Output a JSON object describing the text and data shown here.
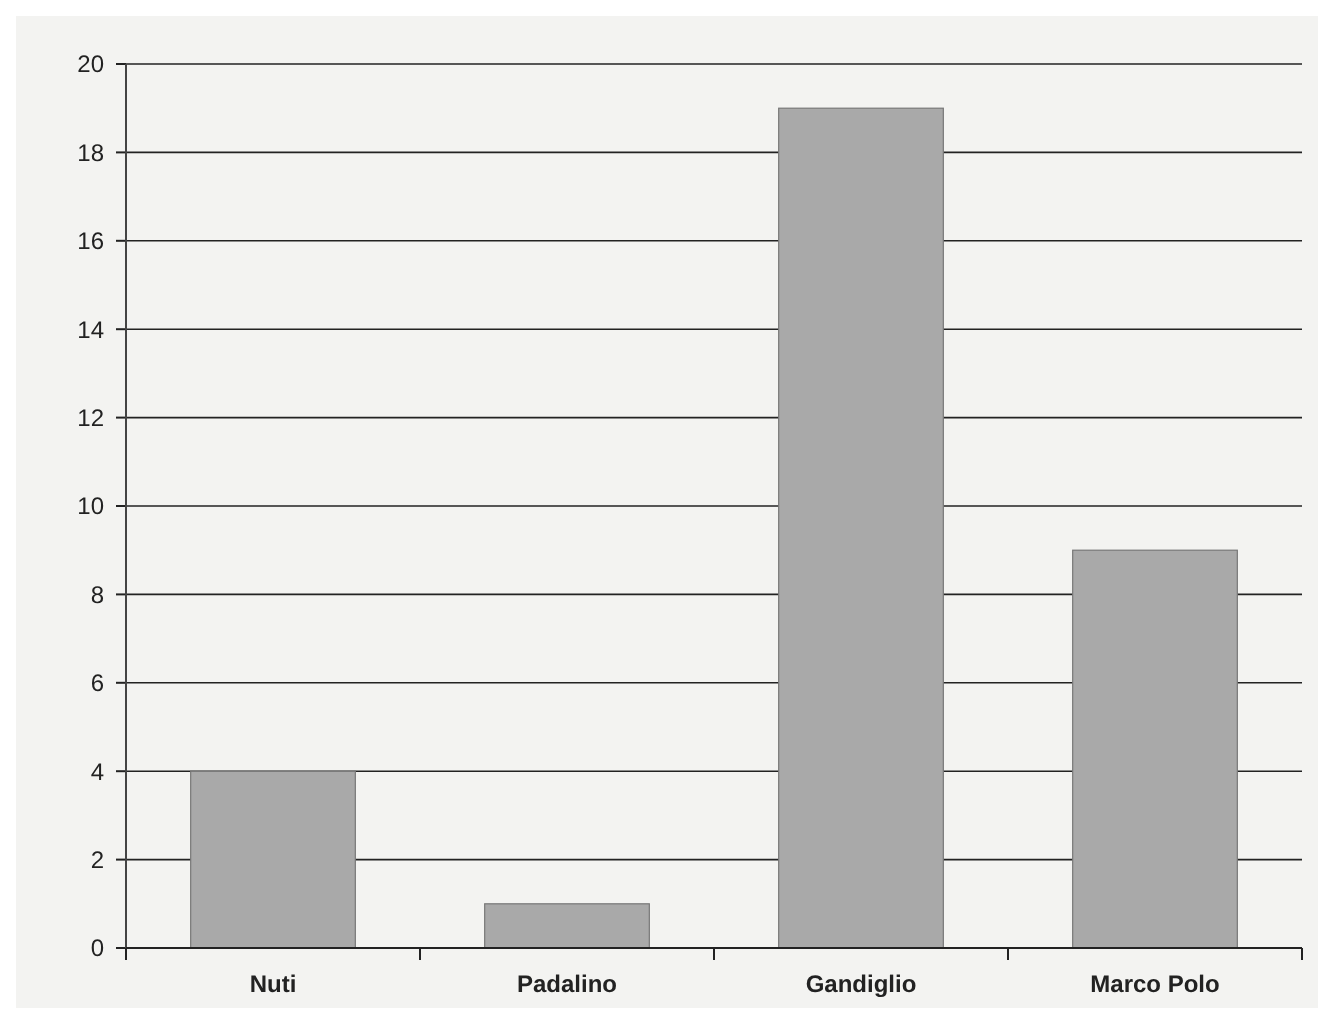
{
  "chart_data": {
    "type": "bar",
    "categories": [
      "Nuti",
      "Padalino",
      "Gandiglio",
      "Marco Polo"
    ],
    "values": [
      4,
      1,
      19,
      9
    ],
    "color": "#a9a9a9",
    "ylim": [
      0,
      20
    ],
    "yticks": [
      0,
      2,
      4,
      6,
      8,
      10,
      12,
      14,
      16,
      18,
      20
    ],
    "grid": "y"
  }
}
